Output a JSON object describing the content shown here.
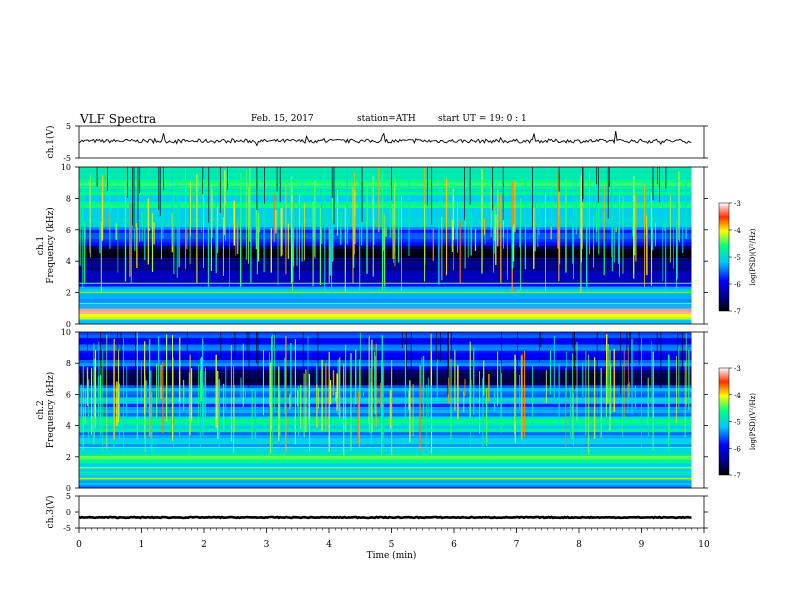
{
  "header": {
    "title": "VLF  Spectra",
    "date": "Feb. 15, 2017",
    "station": "station=ATH",
    "start": "start  UT  =    19: 0   : 1"
  },
  "chart_data": [
    {
      "type": "line",
      "name": "ch1-waveform",
      "ylabel": "ch.1(V)",
      "ylim": [
        -5,
        5
      ],
      "yticks": [
        "5",
        "-5"
      ],
      "xlim": [
        0,
        10
      ],
      "x_end": 9.8,
      "baseline": 0.3,
      "amplitude": 0.6
    },
    {
      "type": "heatmap",
      "name": "ch1-spectrogram",
      "ylabel": "ch.1\nFrequency  (kHz)",
      "ylabel_lines": [
        "ch.1",
        "Frequency  (kHz)"
      ],
      "ylim": [
        0,
        10
      ],
      "yticks": [
        "0",
        "2",
        "4",
        "6",
        "8",
        "10"
      ],
      "xlim": [
        0,
        10
      ],
      "x_end": 9.8,
      "colorbar": {
        "label": "log(PSD)(V²/Hz)",
        "range": [
          -7,
          -3
        ],
        "ticks": [
          "-3",
          "-4",
          "-5",
          "-6",
          "-7"
        ]
      },
      "bands": [
        {
          "from": 0.0,
          "to": 0.3,
          "level": -5.0
        },
        {
          "from": 0.3,
          "to": 0.6,
          "level": -4.2
        },
        {
          "from": 0.6,
          "to": 1.0,
          "level": -3.4
        },
        {
          "from": 1.0,
          "to": 1.6,
          "level": -5.6
        },
        {
          "from": 1.6,
          "to": 2.4,
          "level": -5.3
        },
        {
          "from": 2.4,
          "to": 3.4,
          "level": -6.0
        },
        {
          "from": 3.4,
          "to": 5.0,
          "level": -6.8
        },
        {
          "from": 5.0,
          "to": 5.6,
          "level": -6.0
        },
        {
          "from": 5.6,
          "to": 6.2,
          "level": -5.6
        },
        {
          "from": 6.2,
          "to": 7.4,
          "level": -5.2
        },
        {
          "from": 7.4,
          "to": 8.8,
          "level": -4.9
        },
        {
          "from": 8.8,
          "to": 10.0,
          "level": -4.6
        }
      ]
    },
    {
      "type": "heatmap",
      "name": "ch2-spectrogram",
      "ylabel": "ch.2\nFrequency  (kHz)",
      "ylabel_lines": [
        "ch.2",
        "Frequency  (kHz)"
      ],
      "ylim": [
        0,
        10
      ],
      "yticks": [
        "0",
        "2",
        "4",
        "6",
        "8",
        "10"
      ],
      "xlim": [
        0,
        10
      ],
      "x_end": 9.8,
      "colorbar": {
        "label": "log(PSD)(V²/Hz)",
        "range": [
          -7,
          -3
        ],
        "ticks": [
          "-3",
          "-4",
          "-5",
          "-6",
          "-7"
        ]
      },
      "bands": [
        {
          "from": 0.0,
          "to": 0.5,
          "level": -5.4
        },
        {
          "from": 0.5,
          "to": 1.6,
          "level": -5.0
        },
        {
          "from": 1.6,
          "to": 2.2,
          "level": -4.6
        },
        {
          "from": 2.2,
          "to": 3.6,
          "level": -5.4
        },
        {
          "from": 3.6,
          "to": 4.6,
          "level": -5.0
        },
        {
          "from": 4.6,
          "to": 5.6,
          "level": -5.6
        },
        {
          "from": 5.6,
          "to": 6.6,
          "level": -5.4
        },
        {
          "from": 6.6,
          "to": 7.6,
          "level": -6.6
        },
        {
          "from": 7.6,
          "to": 10.0,
          "level": -5.8
        }
      ]
    },
    {
      "type": "line",
      "name": "ch3-waveform",
      "ylabel": "ch.3(V)",
      "ylim": [
        -5,
        5
      ],
      "yticks": [
        "5",
        "0",
        "-5"
      ],
      "xlim": [
        0,
        10
      ],
      "x_end": 9.8,
      "baseline": -1.7,
      "amplitude": 0.15
    }
  ],
  "xaxis": {
    "label": "Time  (min)",
    "ticks": [
      "0",
      "1",
      "2",
      "3",
      "4",
      "5",
      "6",
      "7",
      "8",
      "9",
      "10"
    ]
  },
  "colors": [
    "#000080",
    "#0000ff",
    "#00c8ff",
    "#00ff80",
    "#ffff00",
    "#ff3000",
    "#ffffff"
  ]
}
